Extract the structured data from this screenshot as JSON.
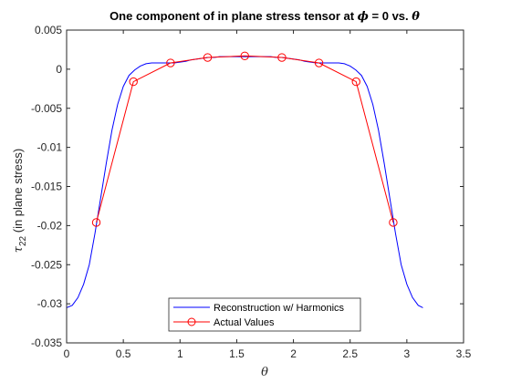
{
  "chart_data": {
    "type": "line",
    "title": "One component of in plane stress tensor at ϕ = 0 vs. θ",
    "title_parts": {
      "prefix": "One component of in plane stress tensor at ",
      "sym1": "ϕ",
      "middle": " = 0 vs. ",
      "sym2": "θ"
    },
    "xlabel": "θ",
    "ylabel_parts": {
      "tau": "τ",
      "sub": "22",
      "rest": " (in plane stress)"
    },
    "xlim": [
      0,
      3.5
    ],
    "ylim": [
      -0.035,
      0.005
    ],
    "xticks": [
      "0",
      "0.5",
      "1",
      "1.5",
      "2",
      "2.5",
      "3",
      "3.5"
    ],
    "yticks": [
      "-0.035",
      "-0.03",
      "-0.025",
      "-0.02",
      "-0.015",
      "-0.01",
      "-0.005",
      "0",
      "0.005"
    ],
    "grid": false,
    "legend_position": "bottom-center",
    "series": [
      {
        "name": "Reconstruction w/ Harmonics",
        "color": "#0000ff",
        "marker": "none",
        "x": [
          0.0,
          0.05,
          0.1,
          0.15,
          0.2,
          0.25,
          0.3,
          0.35,
          0.4,
          0.45,
          0.5,
          0.55,
          0.6,
          0.65,
          0.7,
          0.75,
          0.8,
          0.85,
          0.9,
          0.95,
          1.0,
          1.05,
          1.1,
          1.15,
          1.2,
          1.25,
          1.3,
          1.35,
          1.4,
          1.45,
          1.5,
          1.55,
          1.5708,
          1.6,
          1.65,
          1.7,
          1.75,
          1.8,
          1.85,
          1.9,
          1.95,
          2.0,
          2.05,
          2.1,
          2.15,
          2.2,
          2.25,
          2.3,
          2.35,
          2.4,
          2.45,
          2.5,
          2.55,
          2.6,
          2.65,
          2.7,
          2.75,
          2.8,
          2.85,
          2.9,
          2.95,
          3.0,
          3.05,
          3.1,
          3.1416
        ],
        "y": [
          -0.0305,
          -0.0302,
          -0.0292,
          -0.0275,
          -0.025,
          -0.021,
          -0.0165,
          -0.012,
          -0.0078,
          -0.0045,
          -0.0022,
          -0.0008,
          -0.0001,
          0.0004,
          0.0007,
          0.0008,
          0.0008,
          0.0008,
          0.0008,
          0.0008,
          0.0009,
          0.001,
          0.0012,
          0.0013,
          0.0014,
          0.0015,
          0.0015,
          0.0016,
          0.0016,
          0.0016,
          0.0016,
          0.0016,
          0.0016,
          0.0016,
          0.0016,
          0.0016,
          0.0016,
          0.0016,
          0.0015,
          0.0015,
          0.0014,
          0.0013,
          0.0012,
          0.001,
          0.0009,
          0.0008,
          0.0008,
          0.0008,
          0.0008,
          0.0008,
          0.0007,
          0.0004,
          -0.0001,
          -0.0008,
          -0.0022,
          -0.0045,
          -0.0078,
          -0.012,
          -0.0165,
          -0.021,
          -0.025,
          -0.0275,
          -0.0292,
          -0.0302,
          -0.0305
        ]
      },
      {
        "name": "Actual Values",
        "color": "#ff0000",
        "marker": "circle",
        "x": [
          0.2618,
          0.589,
          0.9163,
          1.2435,
          1.5708,
          1.8981,
          2.2253,
          2.5526,
          2.8798
        ],
        "y": [
          -0.0196,
          -0.0016,
          0.0008,
          0.0015,
          0.0017,
          0.0015,
          0.0008,
          -0.0016,
          -0.0196
        ]
      }
    ]
  }
}
